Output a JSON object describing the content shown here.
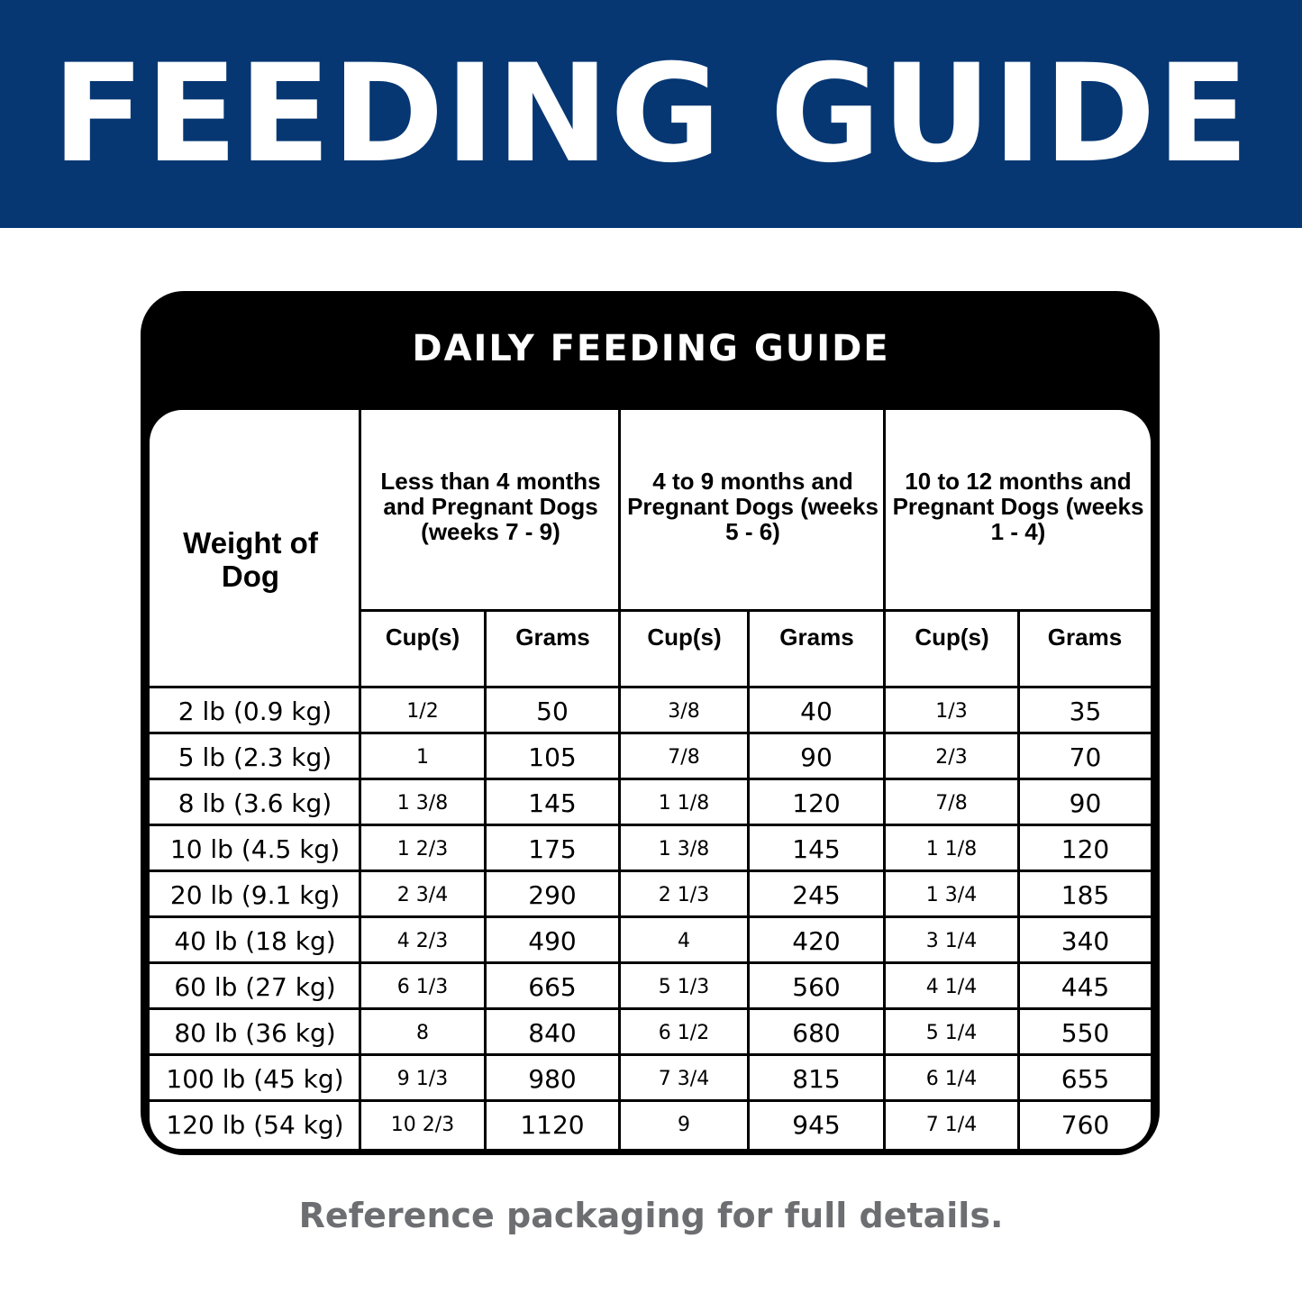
{
  "banner": {
    "title": "FEEDING GUIDE",
    "color": "#063773"
  },
  "table": {
    "title": "DAILY FEEDING GUIDE",
    "weight_header": "Weight of Dog",
    "groups": [
      {
        "label": "Less than 4 months and Pregnant Dogs (weeks 7 - 9)"
      },
      {
        "label": "4 to 9 months and Pregnant Dogs (weeks 5 - 6)"
      },
      {
        "label": "10 to 12 months and Pregnant Dogs (weeks 1 - 4)"
      }
    ],
    "sub_headers": [
      "Cup(s)",
      "Grams",
      "Cup(s)",
      "Grams",
      "Cup(s)",
      "Grams"
    ],
    "rows": [
      {
        "weight": "2 lb (0.9 kg)",
        "values": [
          "1/2",
          "50",
          "3/8",
          "40",
          "1/3",
          "35"
        ]
      },
      {
        "weight": "5 lb (2.3 kg)",
        "values": [
          "1",
          "105",
          "7/8",
          "90",
          "2/3",
          "70"
        ]
      },
      {
        "weight": "8 lb (3.6 kg)",
        "values": [
          "1 3/8",
          "145",
          "1 1/8",
          "120",
          "7/8",
          "90"
        ]
      },
      {
        "weight": "10 lb (4.5 kg)",
        "values": [
          "1 2/3",
          "175",
          "1 3/8",
          "145",
          "1 1/8",
          "120"
        ]
      },
      {
        "weight": "20 lb (9.1 kg)",
        "values": [
          "2 3/4",
          "290",
          "2 1/3",
          "245",
          "1 3/4",
          "185"
        ]
      },
      {
        "weight": "40 lb (18 kg)",
        "values": [
          "4 2/3",
          "490",
          "4",
          "420",
          "3 1/4",
          "340"
        ]
      },
      {
        "weight": "60 lb (27 kg)",
        "values": [
          "6 1/3",
          "665",
          "5 1/3",
          "560",
          "4 1/4",
          "445"
        ]
      },
      {
        "weight": "80 lb (36 kg)",
        "values": [
          "8",
          "840",
          "6 1/2",
          "680",
          "5 1/4",
          "550"
        ]
      },
      {
        "weight": "100 lb (45 kg)",
        "values": [
          "9 1/3",
          "980",
          "7 3/4",
          "815",
          "6 1/4",
          "655"
        ]
      },
      {
        "weight": "120 lb (54 kg)",
        "values": [
          "10 2/3",
          "1120",
          "9",
          "945",
          "7 1/4",
          "760"
        ]
      }
    ]
  },
  "footer": {
    "note": "Reference packaging for full details."
  }
}
